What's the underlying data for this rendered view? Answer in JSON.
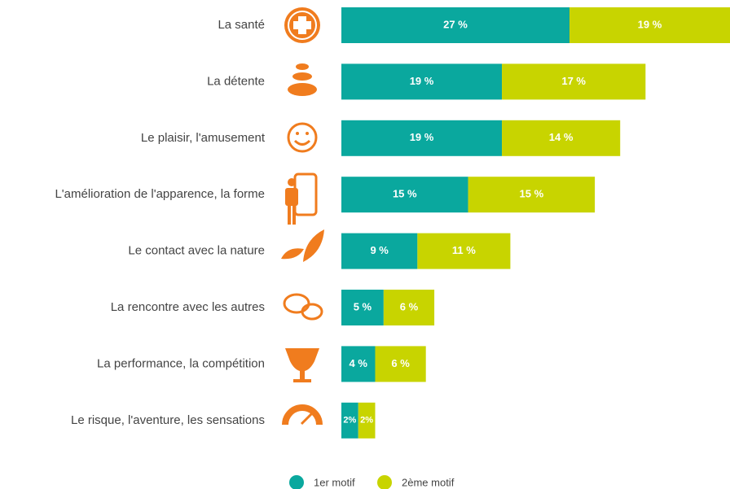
{
  "chart_data": {
    "type": "bar",
    "orientation": "horizontal",
    "stacked": true,
    "categories": [
      "La santé",
      "La détente",
      "Le plaisir, l'amusement",
      "L'amélioration de l'apparence, la forme",
      "Le contact avec la nature",
      "La rencontre avec les autres",
      "La performance, la compétition",
      "Le risque, l'aventure, les sensations"
    ],
    "series": [
      {
        "name": "1er motif",
        "color": "#0aa89e",
        "values": [
          27,
          19,
          19,
          15,
          9,
          5,
          4,
          2
        ],
        "value_labels": [
          "27 %",
          "19 %",
          "19 %",
          "15 %",
          "9 %",
          "5 %",
          "4 %",
          "2%"
        ]
      },
      {
        "name": "2ème motif",
        "color": "#c8d400",
        "values": [
          19,
          17,
          14,
          15,
          11,
          6,
          6,
          2
        ],
        "value_labels": [
          "19 %",
          "17 %",
          "14 %",
          "15 %",
          "11 %",
          "6 %",
          "6 %",
          "2%"
        ]
      }
    ],
    "legend": "bottom"
  }
}
